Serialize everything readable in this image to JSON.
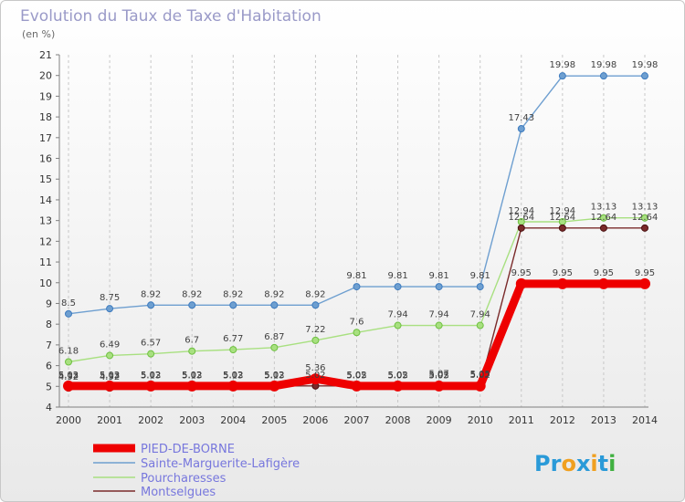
{
  "chart_data": {
    "type": "line",
    "title": "Evolution du Taux de Taxe d'Habitation",
    "subtitle": "(en %)",
    "xlabel": "",
    "ylabel": "",
    "x": [
      "2000",
      "2001",
      "2002",
      "2003",
      "2004",
      "2005",
      "2006",
      "2007",
      "2008",
      "2009",
      "2010",
      "2011",
      "2012",
      "2013",
      "2014"
    ],
    "ylim": [
      4,
      21
    ],
    "yticks": [
      "4",
      "5",
      "6",
      "7",
      "8",
      "9",
      "10",
      "11",
      "12",
      "13",
      "14",
      "15",
      "16",
      "17",
      "18",
      "19",
      "20",
      "21"
    ],
    "grid": "vertical dashed",
    "legend_position": "bottom-left",
    "series": [
      {
        "name": "PIED-DE-BORNE",
        "color": "#ee0000",
        "values": [
          5.02,
          5.02,
          5.02,
          5.02,
          5.02,
          5.02,
          5.36,
          5.02,
          5.02,
          5.02,
          5.02,
          9.95,
          9.95,
          9.95,
          9.95
        ],
        "labels": [
          "5.02",
          "5.02",
          "5.02",
          "5.02",
          "5.02",
          "5.02",
          "5.36",
          "5.02",
          "5.02",
          "5.02",
          "5.02",
          "9.95",
          "9.95",
          "9.95",
          "9.95"
        ]
      },
      {
        "name": "Sainte-Marguerite-Lafigère",
        "color": "#6e9fd0",
        "values": [
          8.5,
          8.75,
          8.92,
          8.92,
          8.92,
          8.92,
          8.92,
          9.81,
          9.81,
          9.81,
          9.81,
          17.43,
          19.98,
          19.98,
          19.98
        ],
        "labels": [
          "8.5",
          "8.75",
          "8.92",
          "8.92",
          "8.92",
          "8.92",
          "8.92",
          "9.81",
          "9.81",
          "9.81",
          "9.81",
          "17.43",
          "19.98",
          "19.98",
          "19.98"
        ]
      },
      {
        "name": "Pourcharesses",
        "color": "#a8e080",
        "values": [
          6.18,
          6.49,
          6.57,
          6.7,
          6.77,
          6.87,
          7.22,
          7.6,
          7.94,
          7.94,
          7.94,
          12.94,
          12.94,
          13.13,
          13.13
        ],
        "labels": [
          "6.18",
          "6.49",
          "6.57",
          "6.7",
          "6.77",
          "6.87",
          "7.22",
          "7.6",
          "7.94",
          "7.94",
          "7.94",
          "12.94",
          "12.94",
          "13.13",
          "13.13"
        ]
      },
      {
        "name": "Montselgues",
        "color": "#7a2a2a",
        "values": [
          4.92,
          4.92,
          5.02,
          5.02,
          5.02,
          5.02,
          5.02,
          5.02,
          5.02,
          5.07,
          5.05,
          12.64,
          12.64,
          12.64,
          12.64
        ],
        "labels": [
          "4.92",
          "4.92",
          "5.02",
          "5.02",
          "5.02",
          "5.02",
          "5.02",
          "5.02",
          "5.02",
          "5.07",
          "5.05",
          "12.64",
          "12.64",
          "12.64",
          "12.64"
        ]
      }
    ],
    "point_labels_extra": [
      "5.13",
      "5.13",
      "5.13",
      "5.13",
      "5.13",
      "5.13",
      "5.05",
      "5.05",
      "5.05"
    ]
  },
  "logo": {
    "text": "Proxiti",
    "letters": [
      "P",
      "r",
      "o",
      "x",
      "i",
      "t",
      "i"
    ],
    "colors": [
      "#2a9ad8",
      "#2a9ad8",
      "#f0a020",
      "#2a9ad8",
      "#f0a020",
      "#2a9ad8",
      "#40b040"
    ]
  }
}
